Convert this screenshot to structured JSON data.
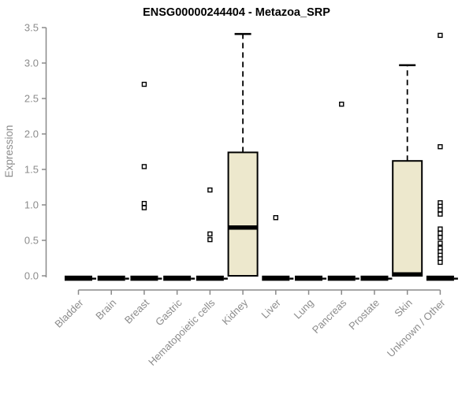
{
  "chart_data": {
    "type": "boxplot",
    "title": "ENSG00000244404 - Metazoa_SRP",
    "xlabel": "",
    "ylabel": "Expression",
    "ylim": [
      0,
      3.5
    ],
    "yticks": [
      0,
      0.5,
      1,
      1.5,
      2,
      2.5,
      3,
      3.5
    ],
    "ytick_labels": [
      "0.0",
      "0.5",
      "1.0",
      "1.5",
      "2.0",
      "2.5",
      "3.0",
      "3.5"
    ],
    "grid": false,
    "legend": "none",
    "categories": [
      "Bladder",
      "Brain",
      "Breast",
      "Gastric",
      "Hematopoietic cells",
      "Kidney",
      "Liver",
      "Lung",
      "Pancreas",
      "Prostate",
      "Skin",
      "Unknown / Other"
    ],
    "boxes": [
      {
        "category": "Bladder",
        "q1": 0,
        "median": 0,
        "q3": 0,
        "whisker_low": 0,
        "whisker_high": 0,
        "outliers": []
      },
      {
        "category": "Brain",
        "q1": 0,
        "median": 0,
        "q3": 0,
        "whisker_low": 0,
        "whisker_high": 0,
        "outliers": []
      },
      {
        "category": "Breast",
        "q1": 0,
        "median": 0,
        "q3": 0,
        "whisker_low": 0,
        "whisker_high": 0,
        "outliers": [
          2.7,
          1.54,
          1.02,
          0.96
        ]
      },
      {
        "category": "Gastric",
        "q1": 0,
        "median": 0,
        "q3": 0,
        "whisker_low": 0,
        "whisker_high": 0,
        "outliers": []
      },
      {
        "category": "Hematopoietic cells",
        "q1": 0,
        "median": 0,
        "q3": 0,
        "whisker_low": 0,
        "whisker_high": 0,
        "outliers": [
          1.21,
          0.59,
          0.51
        ]
      },
      {
        "category": "Kidney",
        "q1": 0,
        "median": 0.68,
        "q3": 1.74,
        "whisker_low": 0,
        "whisker_high": 3.41,
        "outliers": []
      },
      {
        "category": "Liver",
        "q1": 0,
        "median": 0,
        "q3": 0,
        "whisker_low": 0,
        "whisker_high": 0,
        "outliers": [
          0.82
        ]
      },
      {
        "category": "Lung",
        "q1": 0,
        "median": 0,
        "q3": 0,
        "whisker_low": 0,
        "whisker_high": 0,
        "outliers": []
      },
      {
        "category": "Pancreas",
        "q1": 0,
        "median": 0,
        "q3": 0,
        "whisker_low": 0,
        "whisker_high": 0,
        "outliers": [
          2.42
        ]
      },
      {
        "category": "Prostate",
        "q1": 0,
        "median": 0,
        "q3": 0,
        "whisker_low": 0,
        "whisker_high": 0,
        "outliers": []
      },
      {
        "category": "Skin",
        "q1": 0,
        "median": 0.02,
        "q3": 1.62,
        "whisker_low": 0,
        "whisker_high": 2.97,
        "outliers": []
      },
      {
        "category": "Unknown / Other",
        "q1": 0,
        "median": 0,
        "q3": 0,
        "whisker_low": 0,
        "whisker_high": 0,
        "outliers": [
          3.39,
          1.82,
          1.03,
          0.98,
          0.93,
          0.87,
          0.66,
          0.6,
          0.54,
          0.46,
          0.39,
          0.34,
          0.29,
          0.24,
          0.19
        ]
      }
    ],
    "colors": {
      "background": "#FFFFFF",
      "box_fill": "#EDE8CD",
      "box_border": "#000000",
      "median": "#000000",
      "whisker": "#000000",
      "outlier_stroke": "#000000",
      "outlier_fill": "#FFFFFF",
      "axis": "#8A8A8A",
      "tick_labels": "#8C8C8C",
      "title": "#000000"
    }
  }
}
